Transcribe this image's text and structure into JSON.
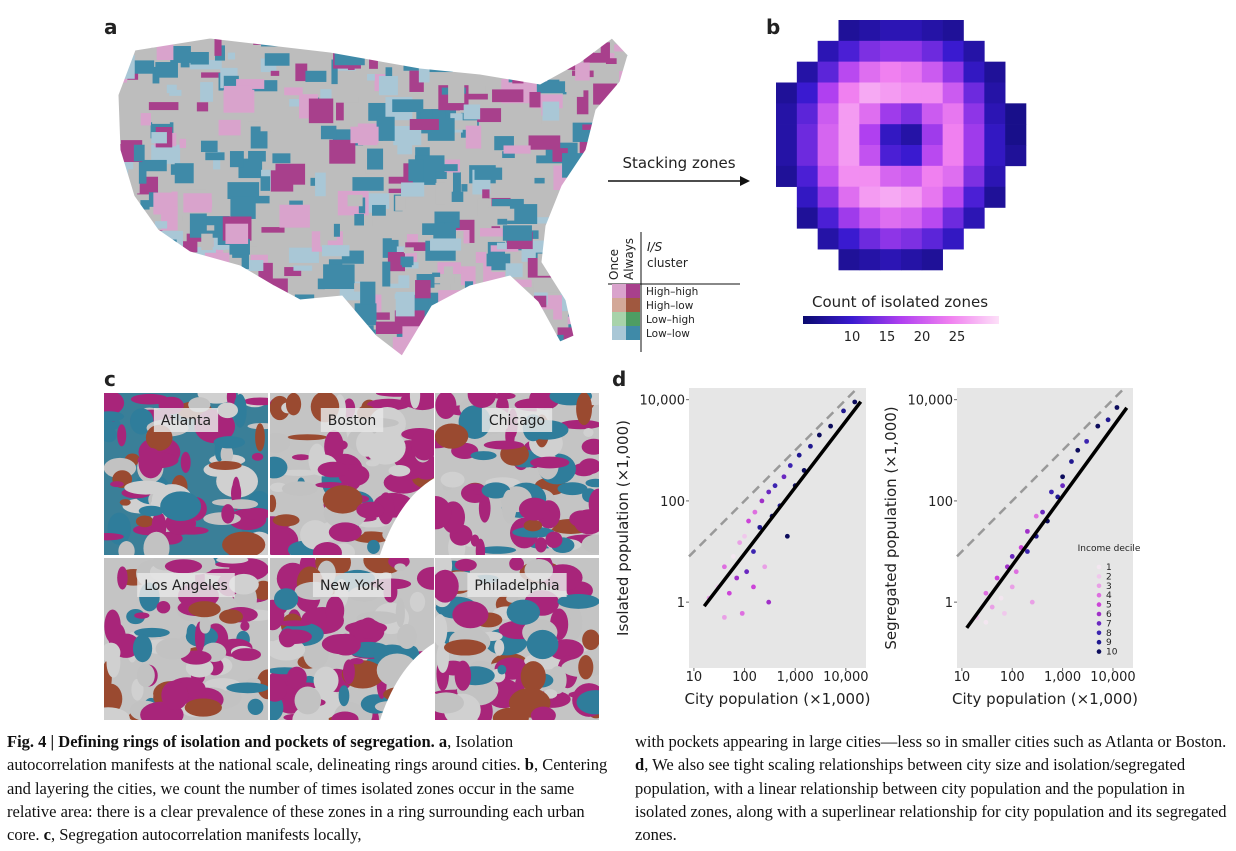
{
  "panel_a": {
    "letter": "a",
    "arrow_label": "Stacking zones",
    "legend": {
      "once": "Once",
      "always": "Always",
      "title_italic": "I/S",
      "title_rest": "cluster",
      "items": [
        {
          "label": "High–high",
          "once": "#d9a3cc",
          "always": "#a8408c"
        },
        {
          "label": "High–low",
          "once": "#d3a898",
          "always": "#a0583f"
        },
        {
          "label": "Low–high",
          "once": "#a8d3aa",
          "always": "#4e9d63"
        },
        {
          "label": "Low–low",
          "once": "#a9c7d6",
          "always": "#3f8aa8"
        }
      ]
    }
  },
  "panel_b": {
    "letter": "b",
    "colorbar_label": "Count of isolated zones",
    "zlim": [
      3,
      31
    ],
    "zticks": [
      10,
      15,
      20,
      25
    ],
    "colormap": [
      "#0a0a6e",
      "#3a1ad0",
      "#b040f0",
      "#f080f0",
      "#fde0f8"
    ],
    "grid": [
      [
        null,
        null,
        null,
        6,
        7,
        8,
        8,
        7,
        6,
        null,
        null,
        null
      ],
      [
        null,
        null,
        8,
        11,
        14,
        15,
        15,
        13,
        10,
        7,
        null,
        null
      ],
      [
        null,
        7,
        12,
        18,
        22,
        24,
        23,
        20,
        15,
        9,
        6,
        null
      ],
      [
        6,
        10,
        17,
        24,
        27,
        26,
        25,
        25,
        20,
        13,
        7,
        null
      ],
      [
        7,
        12,
        20,
        26,
        22,
        16,
        14,
        20,
        23,
        15,
        8,
        5
      ],
      [
        7,
        13,
        21,
        26,
        17,
        9,
        7,
        16,
        24,
        16,
        9,
        5
      ],
      [
        7,
        13,
        21,
        26,
        19,
        11,
        10,
        18,
        24,
        16,
        9,
        6
      ],
      [
        6,
        11,
        19,
        25,
        25,
        21,
        20,
        24,
        22,
        14,
        8,
        null
      ],
      [
        null,
        9,
        15,
        22,
        26,
        27,
        26,
        23,
        18,
        11,
        6,
        null
      ],
      [
        null,
        6,
        11,
        16,
        20,
        22,
        21,
        18,
        13,
        8,
        null,
        null
      ],
      [
        null,
        null,
        7,
        10,
        13,
        15,
        14,
        12,
        9,
        null,
        null,
        null
      ],
      [
        null,
        null,
        null,
        6,
        7,
        8,
        7,
        6,
        null,
        null,
        null,
        null
      ]
    ]
  },
  "panel_c": {
    "letter": "c",
    "cities": [
      "Atlanta",
      "Boston",
      "Chicago",
      "Los Angeles",
      "New York",
      "Philadelphia"
    ]
  },
  "panel_d": {
    "letter": "d",
    "log_scale": true,
    "xlim": [
      8,
      25000
    ],
    "ylim": [
      0.05,
      17000
    ],
    "xticks": [
      10,
      100,
      {
        "value": 1000,
        "label": "1,000"
      },
      {
        "value": 10000,
        "label": "10,000"
      }
    ],
    "yticks": [
      1,
      100,
      {
        "value": 10000,
        "label": "10,000"
      }
    ],
    "legend_title": "Income decile",
    "deciles": [
      1,
      2,
      3,
      4,
      5,
      6,
      7,
      8,
      9,
      10
    ],
    "decile_colors": [
      "#f3e6f0",
      "#f0c8ec",
      "#e9a0e6",
      "#de6fe0",
      "#cc44d8",
      "#a030c8",
      "#6a28c0",
      "#3c24b0",
      "#201890",
      "#0c0c5c"
    ],
    "plots": [
      {
        "x_label": "City population (×1,000)",
        "y_label": "Isolated population (×1,000)",
        "reference": {
          "x": [
            8,
            17000
          ],
          "y": [
            8,
            17000
          ]
        },
        "fit": {
          "x": [
            16,
            19700
          ],
          "y": [
            0.83,
            9100
          ]
        },
        "x": [
          20,
          30,
          40,
          50,
          60,
          70,
          80,
          90,
          100,
          110,
          120,
          150,
          160,
          200,
          220,
          250,
          300,
          350,
          400,
          500,
          600,
          700,
          800,
          1000,
          1200,
          1500,
          2000,
          3000,
          5000,
          9000,
          15000,
          40,
          150,
          300
        ],
        "y": [
          1.2,
          2,
          5,
          1.5,
          8,
          3,
          15,
          0.6,
          20,
          4,
          40,
          10,
          60,
          30,
          100,
          5,
          150,
          50,
          200,
          80,
          300,
          20,
          500,
          200,
          800,
          400,
          1200,
          2000,
          3000,
          6000,
          9000,
          0.5,
          2,
          1
        ],
        "decile": [
          3,
          2,
          4,
          5,
          1,
          6,
          3,
          4,
          2,
          7,
          5,
          8,
          4,
          9,
          6,
          3,
          7,
          10,
          8,
          9,
          7,
          10,
          8,
          10,
          9,
          10,
          9,
          10,
          10,
          9,
          10,
          3,
          5,
          6
        ]
      },
      {
        "x_label": "City population (×1,000)",
        "y_label": "Segregated population (×1,000)",
        "reference": {
          "x": [
            8,
            17000
          ],
          "y": [
            8,
            17000
          ]
        },
        "fit": {
          "x": [
            12.5,
            18800
          ],
          "y": [
            0.31,
            6900
          ]
        },
        "x": [
          20,
          30,
          40,
          50,
          60,
          80,
          100,
          100,
          120,
          150,
          200,
          200,
          300,
          300,
          400,
          500,
          600,
          800,
          1000,
          1000,
          1500,
          2000,
          3000,
          5000,
          8000,
          12000,
          30,
          70,
          250
        ],
        "y": [
          0.5,
          1.5,
          0.8,
          3,
          1.2,
          5,
          2,
          8,
          4,
          12,
          10,
          25,
          20,
          50,
          60,
          40,
          150,
          120,
          300,
          200,
          600,
          1000,
          1500,
          3000,
          4000,
          7000,
          0.4,
          0.6,
          1
        ],
        "decile": [
          2,
          4,
          3,
          5,
          1,
          6,
          3,
          7,
          4,
          5,
          8,
          6,
          9,
          4,
          7,
          10,
          8,
          9,
          10,
          7,
          9,
          10,
          8,
          10,
          9,
          10,
          1,
          2,
          3
        ]
      }
    ]
  },
  "caption": {
    "columns": [
      [
        {
          "text": "Fig. 4 | Defining rings of isolation and pockets of segregation.",
          "bold": true
        },
        {
          "text": " a",
          "bold": true
        },
        {
          "text": ", Isolation autocorrelation manifests at the national scale, delineating rings around cities. ",
          "bold": false
        },
        {
          "text": "b",
          "bold": true
        },
        {
          "text": ", Centering and layering the cities, we count the number of times isolated zones occur in the same relative area: there is a clear prevalence of these zones in a ring surrounding each urban core. ",
          "bold": false
        },
        {
          "text": "c",
          "bold": true
        },
        {
          "text": ", Segregation autocorrelation manifests locally,",
          "bold": false
        }
      ],
      [
        {
          "text": "with pockets appearing in large cities—less so in smaller cities such as Atlanta or Boston. ",
          "bold": false
        },
        {
          "text": "d",
          "bold": true
        },
        {
          "text": ", We also see tight scaling relationships between city size and isolation/segregated population, with a linear relationship between city population and the population in isolated zones, along with a superlinear relationship for city population and its segregated zones.",
          "bold": false
        }
      ]
    ]
  }
}
